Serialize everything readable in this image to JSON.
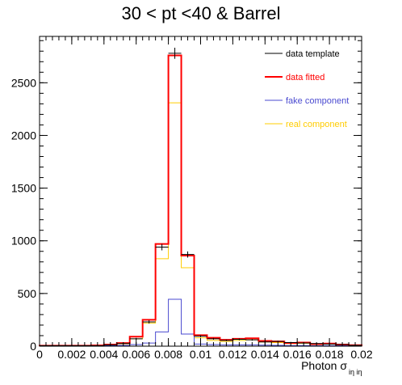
{
  "chart_data": {
    "type": "histogram",
    "title": "30 < pt <40 & Barrel",
    "xlabel": "Photon σ",
    "xlabel_sub": "iη iη",
    "ylabel": "",
    "xlim": [
      0,
      0.02
    ],
    "ylim": [
      0,
      2940
    ],
    "x_ticks": [
      0,
      0.002,
      0.004,
      0.006,
      0.008,
      0.01,
      0.012,
      0.014,
      0.016,
      0.018,
      0.02
    ],
    "x_tick_labels": [
      "0",
      "0.002",
      "0.004",
      "0.006",
      "0.008",
      "0.01",
      "0.012",
      "0.014",
      "0.016",
      "0.018",
      "0.02"
    ],
    "y_ticks": [
      0,
      500,
      1000,
      1500,
      2000,
      2500
    ],
    "y_tick_labels": [
      "0",
      "500",
      "1000",
      "1500",
      "2000",
      "2500"
    ],
    "bin_edges": [
      0,
      0.0008,
      0.0016,
      0.0024,
      0.0032,
      0.004,
      0.0048,
      0.0056,
      0.0064,
      0.0072,
      0.008,
      0.0088,
      0.0096,
      0.0104,
      0.0112,
      0.012,
      0.0128,
      0.0136,
      0.0144,
      0.0152,
      0.016,
      0.0168,
      0.0176,
      0.0184,
      0.0192,
      0.02
    ],
    "legend_position": "top-right",
    "series": [
      {
        "name": "data template",
        "color": "#000000",
        "style": "errorbars",
        "values": [
          5,
          5,
          5,
          5,
          5,
          12,
          25,
          70,
          230,
          940,
          2780,
          870,
          95,
          70,
          55,
          65,
          60,
          40,
          45,
          35,
          30,
          25,
          20,
          15,
          8
        ]
      },
      {
        "name": "data fitted",
        "color": "#ff0000",
        "style": "step",
        "values": [
          5,
          5,
          5,
          5,
          8,
          15,
          30,
          90,
          250,
          970,
          2760,
          860,
          105,
          80,
          60,
          70,
          75,
          50,
          45,
          30,
          35,
          20,
          25,
          15,
          10
        ]
      },
      {
        "name": "fake component",
        "color": "#4a4ad0",
        "style": "step",
        "values": [
          2,
          2,
          2,
          2,
          3,
          5,
          8,
          15,
          30,
          135,
          445,
          115,
          20,
          15,
          12,
          12,
          12,
          10,
          8,
          6,
          6,
          5,
          5,
          4,
          3
        ]
      },
      {
        "name": "real component",
        "color": "#ffcc00",
        "style": "step",
        "values": [
          3,
          3,
          3,
          3,
          5,
          10,
          22,
          70,
          220,
          830,
          2310,
          745,
          80,
          55,
          45,
          55,
          60,
          40,
          35,
          25,
          28,
          15,
          20,
          10,
          7
        ]
      }
    ]
  }
}
